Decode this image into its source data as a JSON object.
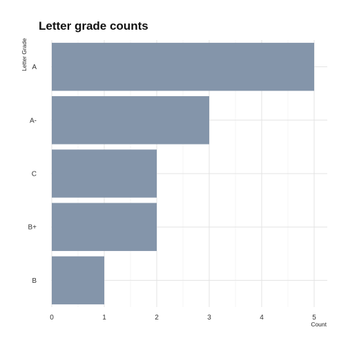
{
  "chart_data": {
    "type": "bar",
    "orientation": "horizontal",
    "title": "Letter grade counts",
    "xlabel": "Count",
    "ylabel": "Letter Grade",
    "categories": [
      "A",
      "A-",
      "C",
      "B+",
      "B"
    ],
    "values": [
      5,
      3,
      2,
      2,
      1
    ],
    "xlim": [
      0,
      5.25
    ],
    "xticks": [
      "0",
      "1",
      "2",
      "3",
      "4",
      "5"
    ],
    "grid": true,
    "legend": "none",
    "bar_color": "#8495aa"
  }
}
